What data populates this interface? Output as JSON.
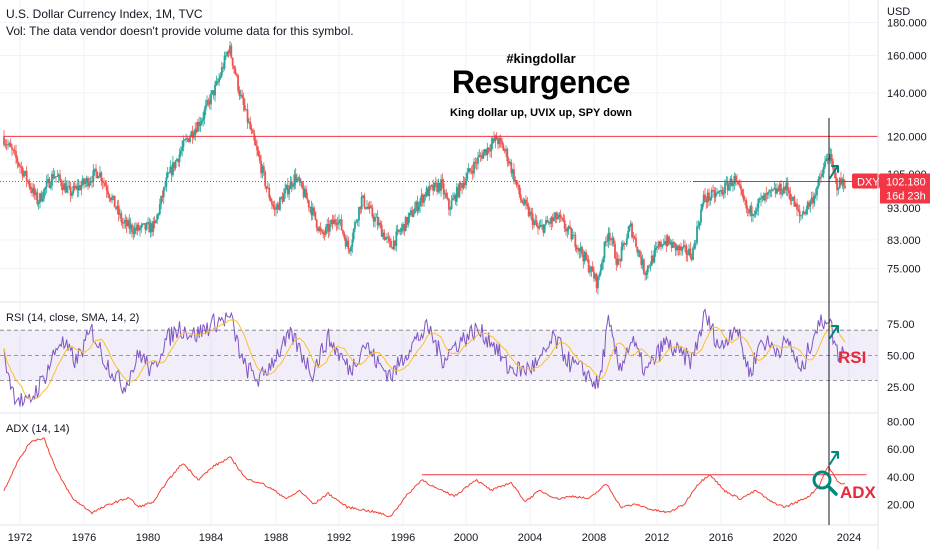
{
  "header": {
    "title": "U.S. Dollar Currency Index, 1M, TVC",
    "volume_note": "Vol: The data vendor doesn't provide volume data for this symbol."
  },
  "annotations": {
    "hashtag": "#kingdollar",
    "headline": "Resurgence",
    "subtitle": "King dollar up, UVIX up, SPY down",
    "rsi_tag": "RSI",
    "adx_tag": "ADX"
  },
  "price_tag": {
    "symbol": "DXY",
    "price": "102.180",
    "countdown": "16d 23h"
  },
  "colors": {
    "up": "#26a69a",
    "down": "#ef5350",
    "rsi_line": "#7e57c2",
    "rsi_ma": "#fbc02d",
    "rsi_band": "#7e57c2",
    "adx_line": "#f44336",
    "hline_red": "#f23645",
    "hline_blue": "#2962ff",
    "annot_red": "#e8293d",
    "annot_green": "#00897b"
  },
  "chart_data": [
    {
      "type": "candlestick",
      "name": "DXY monthly",
      "currency_label": "USD",
      "x_ticks": [
        "1972",
        "1976",
        "1980",
        "1984",
        "1988",
        "1992",
        "1996",
        "2000",
        "2004",
        "2008",
        "2012",
        "2016",
        "2020",
        "2024"
      ],
      "y_ticks": [
        "75.000",
        "83.000",
        "93.000",
        "105.000",
        "120.000",
        "140.000",
        "160.000",
        "180.000"
      ],
      "y_scale": "log",
      "ylim": [
        67,
        195
      ],
      "xlim": [
        1971.0,
        2026.0
      ],
      "last_price": 102.18,
      "anchors": [
        [
          1971.0,
          120
        ],
        [
          1972.0,
          109
        ],
        [
          1973.2,
          95
        ],
        [
          1974.2,
          105
        ],
        [
          1975.2,
          98
        ],
        [
          1976.2,
          102
        ],
        [
          1977.0,
          106
        ],
        [
          1978.5,
          88
        ],
        [
          1979.3,
          86
        ],
        [
          1980.5,
          87
        ],
        [
          1981.3,
          103
        ],
        [
          1982.5,
          118
        ],
        [
          1983.5,
          128
        ],
        [
          1984.5,
          145
        ],
        [
          1985.2,
          165
        ],
        [
          1985.9,
          138
        ],
        [
          1986.7,
          118
        ],
        [
          1987.5,
          100
        ],
        [
          1988.0,
          92
        ],
        [
          1989.3,
          104
        ],
        [
          1990.3,
          93
        ],
        [
          1991.0,
          84
        ],
        [
          1992.0,
          90
        ],
        [
          1992.7,
          80
        ],
        [
          1993.5,
          96
        ],
        [
          1994.5,
          88
        ],
        [
          1995.3,
          81
        ],
        [
          1996.5,
          90
        ],
        [
          1997.5,
          98
        ],
        [
          1998.5,
          101
        ],
        [
          1999.0,
          93
        ],
        [
          2000.0,
          103
        ],
        [
          2001.0,
          112
        ],
        [
          2002.0,
          119
        ],
        [
          2002.6,
          113
        ],
        [
          2003.5,
          96
        ],
        [
          2004.6,
          86
        ],
        [
          2005.8,
          90
        ],
        [
          2007.0,
          82
        ],
        [
          2008.3,
          71
        ],
        [
          2009.0,
          86
        ],
        [
          2009.6,
          76
        ],
        [
          2010.4,
          87
        ],
        [
          2011.3,
          74
        ],
        [
          2012.5,
          83
        ],
        [
          2013.5,
          80
        ],
        [
          2014.3,
          79
        ],
        [
          2015.0,
          96
        ],
        [
          2016.0,
          98
        ],
        [
          2016.9,
          103
        ],
        [
          2017.8,
          91
        ],
        [
          2018.5,
          95
        ],
        [
          2019.6,
          99
        ],
        [
          2020.2,
          100
        ],
        [
          2021.0,
          90
        ],
        [
          2021.8,
          96
        ],
        [
          2022.3,
          103
        ],
        [
          2022.8,
          113
        ],
        [
          2023.3,
          101
        ],
        [
          2023.7,
          102
        ]
      ],
      "hlines": [
        {
          "value": 120,
          "color": "hline_red",
          "from": 1971.0,
          "to": 2026.0
        },
        {
          "value": 102.18,
          "color": "hline_blue",
          "from": 2014.3,
          "to": 2026.0
        }
      ],
      "vline_x": 2022.75
    },
    {
      "type": "line",
      "name": "RSI (14, close, SMA, 14, 2)",
      "title": "RSI (14, close, SMA, 14, 2)",
      "y_ticks": [
        "25.00",
        "50.00",
        "75.00"
      ],
      "ylim": [
        5,
        90
      ],
      "band": [
        30,
        70
      ],
      "midline": 50,
      "anchors": [
        [
          1971.0,
          50
        ],
        [
          1971.6,
          20
        ],
        [
          1972.4,
          10
        ],
        [
          1973.5,
          32
        ],
        [
          1974.5,
          62
        ],
        [
          1975.5,
          45
        ],
        [
          1976.5,
          70
        ],
        [
          1977.3,
          46
        ],
        [
          1978.5,
          25
        ],
        [
          1979.5,
          52
        ],
        [
          1980.3,
          36
        ],
        [
          1981.0,
          60
        ],
        [
          1982.0,
          72
        ],
        [
          1983.0,
          66
        ],
        [
          1984.2,
          76
        ],
        [
          1985.2,
          80
        ],
        [
          1986.0,
          42
        ],
        [
          1987.0,
          30
        ],
        [
          1988.0,
          50
        ],
        [
          1989.0,
          66
        ],
        [
          1990.3,
          36
        ],
        [
          1991.3,
          64
        ],
        [
          1992.7,
          38
        ],
        [
          1993.6,
          60
        ],
        [
          1994.5,
          42
        ],
        [
          1995.3,
          34
        ],
        [
          1996.5,
          58
        ],
        [
          1997.6,
          72
        ],
        [
          1998.5,
          47
        ],
        [
          1999.5,
          60
        ],
        [
          2000.6,
          70
        ],
        [
          2001.6,
          62
        ],
        [
          2002.6,
          40
        ],
        [
          2003.6,
          38
        ],
        [
          2004.6,
          44
        ],
        [
          2005.5,
          64
        ],
        [
          2006.5,
          44
        ],
        [
          2007.5,
          36
        ],
        [
          2008.3,
          25
        ],
        [
          2008.9,
          76
        ],
        [
          2009.6,
          40
        ],
        [
          2010.4,
          62
        ],
        [
          2011.3,
          36
        ],
        [
          2012.5,
          60
        ],
        [
          2013.5,
          50
        ],
        [
          2014.2,
          46
        ],
        [
          2015.0,
          82
        ],
        [
          2016.0,
          55
        ],
        [
          2016.9,
          75
        ],
        [
          2017.8,
          35
        ],
        [
          2018.5,
          62
        ],
        [
          2019.5,
          55
        ],
        [
          2020.3,
          60
        ],
        [
          2021.0,
          35
        ],
        [
          2021.8,
          68
        ],
        [
          2022.7,
          82
        ],
        [
          2023.3,
          50
        ],
        [
          2023.7,
          55
        ]
      ]
    },
    {
      "type": "line",
      "name": "ADX (14, 14)",
      "title": "ADX (14, 14)",
      "y_ticks": [
        "20.00",
        "40.00",
        "60.00",
        "80.00"
      ],
      "ylim": [
        5,
        87
      ],
      "hline": {
        "value": 41.5,
        "from": 1997.2,
        "to": 2025.1
      },
      "anchors": [
        [
          1971.0,
          30
        ],
        [
          1971.8,
          50
        ],
        [
          1972.7,
          66
        ],
        [
          1973.5,
          68
        ],
        [
          1974.3,
          44
        ],
        [
          1975.3,
          24
        ],
        [
          1976.5,
          14
        ],
        [
          1977.6,
          20
        ],
        [
          1978.8,
          25
        ],
        [
          1979.4,
          18
        ],
        [
          1980.4,
          22
        ],
        [
          1981.1,
          35
        ],
        [
          1982.2,
          50
        ],
        [
          1983.2,
          38
        ],
        [
          1984.2,
          48
        ],
        [
          1985.2,
          54
        ],
        [
          1986.2,
          38
        ],
        [
          1987.0,
          36
        ],
        [
          1987.9,
          30
        ],
        [
          1988.7,
          24
        ],
        [
          1989.5,
          30
        ],
        [
          1990.4,
          20
        ],
        [
          1991.3,
          28
        ],
        [
          1992.5,
          18
        ],
        [
          1993.5,
          16
        ],
        [
          1994.4,
          14
        ],
        [
          1995.2,
          11
        ],
        [
          1996.2,
          26
        ],
        [
          1997.2,
          38
        ],
        [
          1998.2,
          31
        ],
        [
          1999.3,
          26
        ],
        [
          2000.6,
          38
        ],
        [
          2001.6,
          30
        ],
        [
          2002.8,
          36
        ],
        [
          2003.7,
          22
        ],
        [
          2004.6,
          30
        ],
        [
          2005.7,
          24
        ],
        [
          2006.7,
          26
        ],
        [
          2007.7,
          24
        ],
        [
          2008.8,
          35
        ],
        [
          2009.7,
          18
        ],
        [
          2010.7,
          20
        ],
        [
          2011.7,
          16
        ],
        [
          2012.7,
          14
        ],
        [
          2013.7,
          20
        ],
        [
          2014.5,
          34
        ],
        [
          2015.3,
          42
        ],
        [
          2016.2,
          30
        ],
        [
          2017.2,
          24
        ],
        [
          2018.2,
          30
        ],
        [
          2019.1,
          22
        ],
        [
          2020.0,
          18
        ],
        [
          2020.8,
          22
        ],
        [
          2021.5,
          26
        ],
        [
          2022.1,
          33
        ],
        [
          2022.7,
          48
        ],
        [
          2023.3,
          36
        ],
        [
          2023.7,
          35
        ]
      ]
    }
  ]
}
